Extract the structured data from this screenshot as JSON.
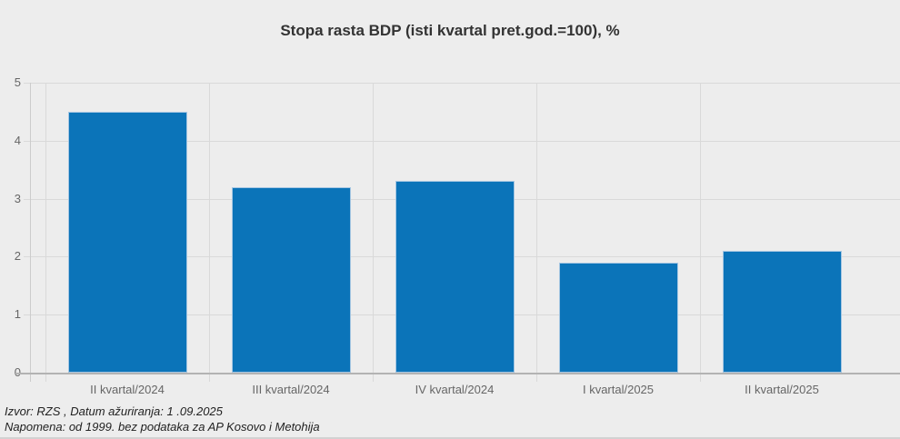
{
  "chart": {
    "title": "Stopa rasta BDP (isti kvartal pret.god.=100), %"
  },
  "footer": {
    "source": "Izvor: RZS , Datum ažuriranja: 1 .09.2025",
    "note": "Napomena: od 1999. bez podataka za AP Kosovo i Metohija"
  },
  "chart_data": {
    "type": "bar",
    "title": "Stopa rasta BDP (isti kvartal pret.god.=100), %",
    "categories": [
      "II kvartal/2024",
      "III kvartal/2024",
      "IV kvartal/2024",
      "I kvartal/2025",
      "II kvartal/2025"
    ],
    "values": [
      4.5,
      3.2,
      3.3,
      1.9,
      2.1
    ],
    "xlabel": "",
    "ylabel": "",
    "ylim": [
      0,
      5
    ],
    "yticks": [
      0,
      1,
      2,
      3,
      4,
      5
    ],
    "grid": true,
    "legend": "none",
    "bar_color": "#0b74b9",
    "bar_border_color": "#a5c6e2",
    "background_color": "#ededed",
    "gridline_color": "#d9d9d9",
    "axis_line_color": "#b3b3b3",
    "label_color": "#666666"
  }
}
